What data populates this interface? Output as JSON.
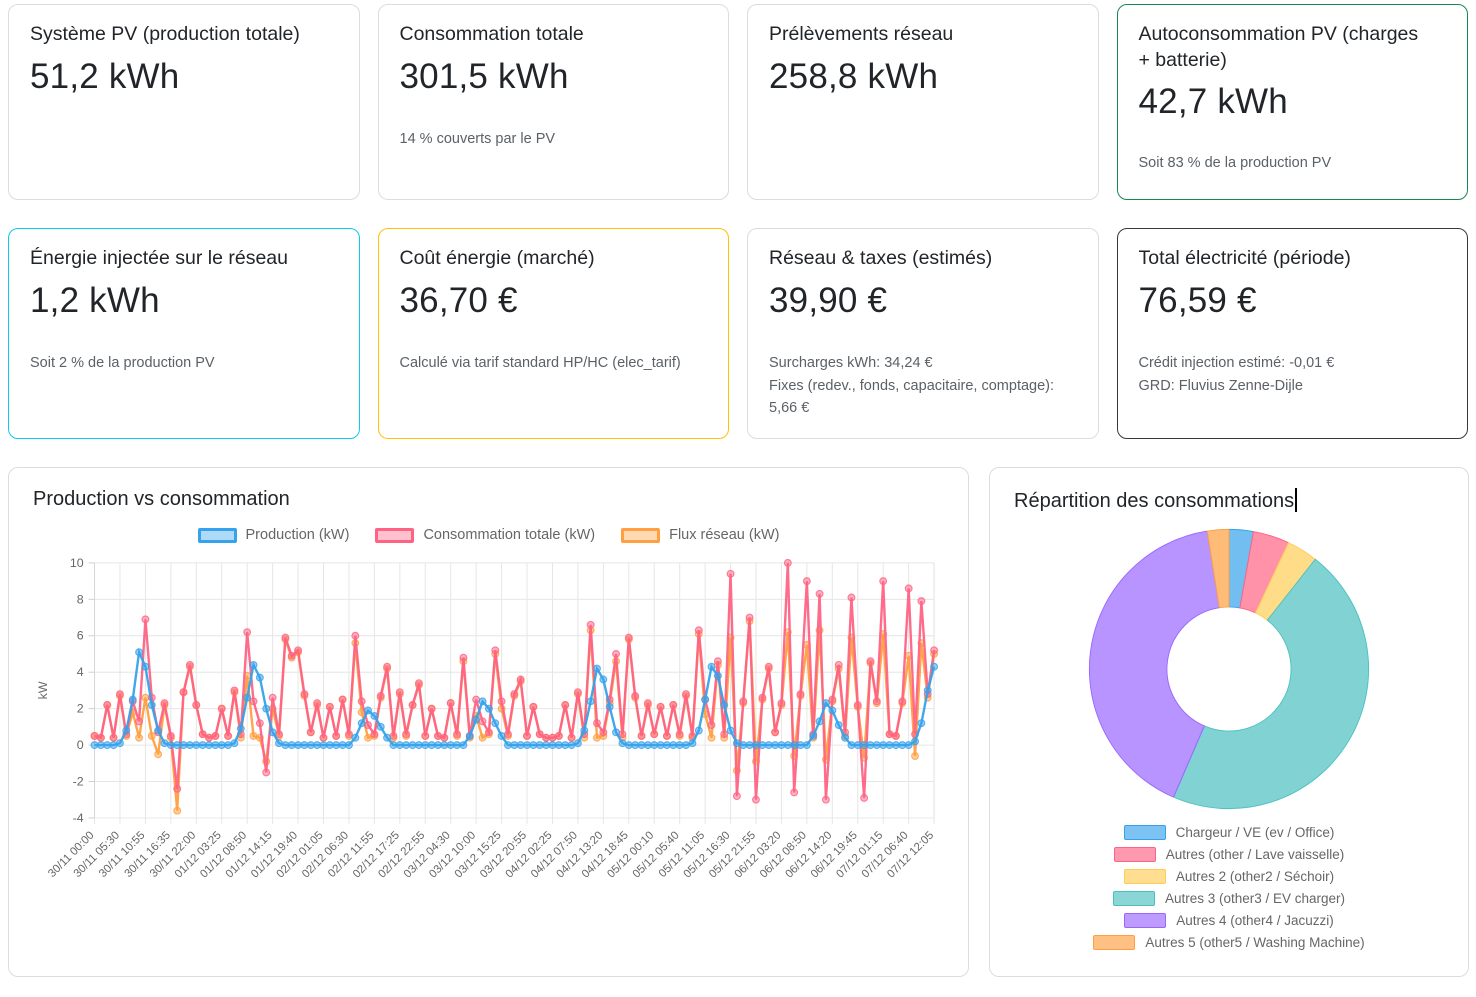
{
  "cards": [
    {
      "title": "Système PV (production totale)",
      "value": "51,2 kWh"
    },
    {
      "title": "Consommation totale",
      "value": "301,5 kWh",
      "subtitle": "14 % couverts par le PV"
    },
    {
      "title": "Prélèvements réseau",
      "value": "258,8 kWh"
    },
    {
      "title": "Autoconsommation PV (charges + batterie)",
      "value": "42,7 kWh",
      "subtitle": "Soit 83 % de la production PV",
      "accent_color": "#198754"
    },
    {
      "title": "Énergie injectée sur le réseau",
      "value": "1,2 kWh",
      "subtitle": "Soit 2 % de la production PV",
      "accent_color": "#0dcaf0"
    },
    {
      "title": "Coût énergie (marché)",
      "value": "36,70 €",
      "subtitle": "Calculé via tarif standard HP/HC (elec_tarif)",
      "accent_color": "#ffc107"
    },
    {
      "title": "Réseau & taxes (estimés)",
      "value": "39,90 €",
      "subtitle_lines": [
        "Surcharges kWh: 34,24 €",
        "Fixes (redev., fonds, capacitaire, comptage): 5,66 €"
      ]
    },
    {
      "title": "Total électricité (période)",
      "value": "76,59 €",
      "subtitle_lines": [
        "Crédit injection estimé: -0,01 €",
        "GRD: Fluvius Zenne-Dijle"
      ],
      "accent_color": "#343a40"
    }
  ],
  "chart_data": [
    {
      "type": "line",
      "title": "Production vs consommation",
      "xlabel": "",
      "ylabel": "kW",
      "ylim": [
        -4,
        10
      ],
      "y_ticks": [
        10,
        8,
        6,
        4,
        2,
        0,
        -2,
        -4
      ],
      "grid": true,
      "legend_position": "top",
      "tick_every": 4,
      "x_tick_labels": [
        "30/11 00:00",
        "30/11 05:30",
        "30/11 10:55",
        "30/11 16:35",
        "30/11 22:00",
        "01/12 03:25",
        "01/12 08:50",
        "01/12 14:15",
        "01/12 19:40",
        "02/12 01:05",
        "02/12 06:30",
        "02/12 11:55",
        "02/12 17:25",
        "02/12 22:55",
        "03/12 04:30",
        "03/12 10:00",
        "03/12 15:25",
        "03/12 20:55",
        "04/12 02:25",
        "04/12 07:50",
        "04/12 13:20",
        "04/12 18:45",
        "05/12 00:10",
        "05/12 05:40",
        "05/12 11:05",
        "05/12 16:30",
        "05/12 21:55",
        "06/12 03:20",
        "06/12 08:50",
        "06/12 14:20",
        "06/12 19:45",
        "07/12 01:15",
        "07/12 06:40",
        "07/12 12:05"
      ],
      "series": [
        {
          "name": "Flux réseau (kW)",
          "color": "#FF9F40",
          "values": [
            0.5,
            0.4,
            2.2,
            0.4,
            2.7,
            0.5,
            1.8,
            0.4,
            2.6,
            0.5,
            -0.5,
            2.2,
            0.4,
            -3.6,
            2.9,
            4.3,
            2.2,
            0.6,
            0.4,
            0.5,
            2.0,
            0.5,
            2.9,
            0.4,
            3.8,
            0.5,
            0.4,
            -0.9,
            2.0,
            0.5,
            5.8,
            4.8,
            5.1,
            2.7,
            0.7,
            2.2,
            0.4,
            2.1,
            0.5,
            2.5,
            0.5,
            5.6,
            1.8,
            0.4,
            0.5,
            2.6,
            4.2,
            0.4,
            2.8,
            0.5,
            2.2,
            3.3,
            0.5,
            2.0,
            0.5,
            0.4,
            2.3,
            0.5,
            4.6,
            0.4,
            1.6,
            0.4,
            0.6,
            5.0,
            2.0,
            0.5,
            2.7,
            3.5,
            0.5,
            2.1,
            0.6,
            0.4,
            0.4,
            0.5,
            2.2,
            0.4,
            2.8,
            0.4,
            6.3,
            0.4,
            0.5,
            2.3,
            4.6,
            0.4,
            5.8,
            2.6,
            0.5,
            2.2,
            0.6,
            2.1,
            0.5,
            2.2,
            0.5,
            2.7,
            0.4,
            6.1,
            1.7,
            0.4,
            4.4,
            0.4,
            5.9,
            -1.4,
            2.3,
            6.8,
            -0.9,
            2.5,
            4.2,
            0.7,
            2.2,
            6.2,
            -0.6,
            2.7,
            5.5,
            0.4,
            6.3,
            -0.8,
            2.4,
            4.2,
            0.5,
            5.9,
            2.1,
            -0.7,
            4.5,
            2.3,
            6.1,
            0.6,
            0.5,
            2.3,
            4.9,
            -0.6,
            5.6,
            2.6,
            5.0
          ]
        },
        {
          "name": "Consommation totale (kW)",
          "color": "#FF6384",
          "values": [
            0.5,
            0.4,
            2.2,
            0.4,
            2.8,
            0.6,
            2.4,
            1.3,
            6.9,
            2.6,
            0.7,
            2.3,
            0.5,
            -2.4,
            2.9,
            4.4,
            2.2,
            0.6,
            0.4,
            0.5,
            2.0,
            0.5,
            3.0,
            0.6,
            6.2,
            2.4,
            1.2,
            -1.5,
            2.6,
            0.6,
            5.9,
            4.9,
            5.2,
            2.8,
            0.7,
            2.3,
            0.4,
            2.1,
            0.5,
            2.5,
            0.6,
            6.0,
            2.4,
            1.1,
            0.6,
            2.7,
            4.3,
            0.5,
            2.9,
            0.6,
            2.2,
            3.4,
            0.5,
            2.0,
            0.5,
            0.4,
            2.3,
            0.6,
            4.8,
            0.5,
            2.5,
            1.3,
            0.7,
            5.2,
            2.4,
            0.6,
            2.8,
            3.6,
            0.5,
            2.1,
            0.6,
            0.4,
            0.4,
            0.5,
            2.2,
            0.4,
            2.9,
            0.6,
            6.6,
            1.2,
            0.7,
            2.5,
            5.0,
            0.6,
            5.9,
            2.7,
            0.5,
            2.3,
            0.6,
            2.1,
            0.5,
            2.2,
            0.6,
            2.8,
            0.5,
            6.3,
            2.5,
            1.1,
            4.6,
            0.6,
            9.4,
            -2.8,
            2.4,
            7.0,
            -3.0,
            2.6,
            4.3,
            0.7,
            2.3,
            10.0,
            -2.6,
            2.8,
            9.0,
            0.6,
            8.3,
            -3.0,
            2.5,
            4.4,
            0.7,
            8.1,
            2.2,
            -2.9,
            4.6,
            2.4,
            9.0,
            0.6,
            0.5,
            2.4,
            8.6,
            0.6,
            7.9,
            2.8,
            5.2
          ]
        },
        {
          "name": "Production (kW)",
          "color": "#36A2EB",
          "values": [
            0,
            0,
            0,
            0,
            0.1,
            0.8,
            2.5,
            5.1,
            4.3,
            2.2,
            0.8,
            0.1,
            0,
            0,
            0,
            0,
            0,
            0,
            0,
            0,
            0,
            0,
            0.1,
            0.9,
            2.6,
            4.4,
            3.7,
            2.0,
            0.7,
            0.1,
            0,
            0,
            0,
            0,
            0,
            0,
            0,
            0,
            0,
            0,
            0,
            0.4,
            1.2,
            1.9,
            1.6,
            1.0,
            0.4,
            0,
            0,
            0,
            0,
            0,
            0,
            0,
            0,
            0,
            0,
            0,
            0,
            0.5,
            1.4,
            2.4,
            2.0,
            1.2,
            0.5,
            0,
            0,
            0,
            0,
            0,
            0,
            0,
            0,
            0,
            0,
            0,
            0.1,
            0.8,
            2.4,
            4.2,
            3.6,
            2.1,
            0.7,
            0.1,
            0,
            0,
            0,
            0,
            0,
            0,
            0,
            0,
            0,
            0,
            0.1,
            0.8,
            2.5,
            4.3,
            3.8,
            2.2,
            0.8,
            0.1,
            0,
            0,
            0,
            0,
            0,
            0,
            0,
            0,
            0,
            0,
            0,
            0.5,
            1.3,
            2.3,
            1.9,
            1.1,
            0.4,
            0,
            0,
            0,
            0,
            0,
            0,
            0,
            0,
            0,
            0,
            0.2,
            1.2,
            3.0,
            4.3
          ]
        }
      ],
      "legend_order": [
        "Production (kW)",
        "Consommation totale (kW)",
        "Flux réseau (kW)"
      ],
      "legend_colors": [
        "#36A2EB",
        "#FF6384",
        "#FF9F40"
      ]
    },
    {
      "type": "pie",
      "title": "Répartition des consommations",
      "doughnut": true,
      "legend_position": "bottom",
      "labels": [
        "Chargeur / VE (ev / Office)",
        "Autres (other / Lave vaisselle)",
        "Autres 2 (other2 / Séchoir)",
        "Autres 3 (other3 / EV charger)",
        "Autres 4 (other4 / Jacuzzi)",
        "Autres 5 (other5 / Washing Machine)"
      ],
      "values": [
        2.8,
        4.2,
        3.6,
        45.9,
        41.0,
        2.5
      ],
      "colors": [
        "#36A2EB",
        "#FF6384",
        "#FFCD56",
        "#4BC0C0",
        "#9966FF",
        "#FF9F40"
      ]
    }
  ]
}
